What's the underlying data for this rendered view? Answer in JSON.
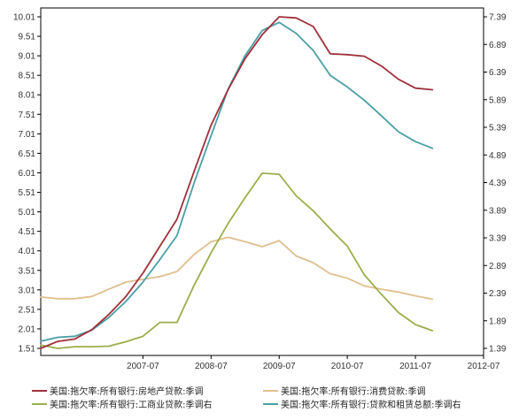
{
  "chart_data": {
    "type": "line",
    "title": "",
    "xlabel": "",
    "ylabel": "",
    "ylim_left": [
      1.51,
      10.01
    ],
    "ylim_right": [
      1.39,
      7.39
    ],
    "left_ticks": [
      "10.01",
      "9.51",
      "9.01",
      "8.51",
      "8.01",
      "7.51",
      "7.01",
      "6.51",
      "6.01",
      "5.51",
      "5.01",
      "4.51",
      "4.01",
      "3.51",
      "3.01",
      "2.51",
      "2.01",
      "1.51"
    ],
    "right_ticks": [
      "7.39",
      "6.89",
      "6.39",
      "5.89",
      "5.39",
      "4.89",
      "4.39",
      "3.89",
      "3.39",
      "2.89",
      "2.39",
      "1.89",
      "1.39"
    ],
    "x_ticks": [
      "2007-07",
      "2008-07",
      "2009-07",
      "2010-07",
      "2011-07",
      "2012-07"
    ],
    "x_range": [
      "2006-01",
      "2012-07"
    ],
    "grid": false,
    "legend_position": "bottom",
    "series": [
      {
        "name": "美国:拖欠率:所有银行:房地产贷款:季调",
        "axis": "left",
        "color": "#a0303a",
        "points": [
          [
            "2006-01",
            1.51
          ],
          [
            "2006-04",
            1.69
          ],
          [
            "2006-07",
            1.75
          ],
          [
            "2006-10",
            1.99
          ],
          [
            "2007-01",
            2.38
          ],
          [
            "2007-04",
            2.84
          ],
          [
            "2007-07",
            3.44
          ],
          [
            "2007-10",
            4.13
          ],
          [
            "2008-01",
            4.82
          ],
          [
            "2008-04",
            6.04
          ],
          [
            "2008-07",
            7.23
          ],
          [
            "2008-10",
            8.14
          ],
          [
            "2009-01",
            8.94
          ],
          [
            "2009-04",
            9.55
          ],
          [
            "2009-07",
            10.01
          ],
          [
            "2009-10",
            9.98
          ],
          [
            "2010-01",
            9.76
          ],
          [
            "2010-04",
            9.06
          ],
          [
            "2010-07",
            9.04
          ],
          [
            "2010-10",
            9.0
          ],
          [
            "2011-01",
            8.75
          ],
          [
            "2011-04",
            8.41
          ],
          [
            "2011-07",
            8.18
          ],
          [
            "2011-10",
            8.14
          ]
        ]
      },
      {
        "name": "美国:拖欠率:所有银行:消费贷款:季调",
        "axis": "right",
        "color": "#e0bf8f",
        "points": [
          [
            "2006-01",
            2.32
          ],
          [
            "2006-04",
            2.29
          ],
          [
            "2006-07",
            2.29
          ],
          [
            "2006-10",
            2.33
          ],
          [
            "2007-01",
            2.46
          ],
          [
            "2007-04",
            2.59
          ],
          [
            "2007-07",
            2.64
          ],
          [
            "2007-10",
            2.69
          ],
          [
            "2008-01",
            2.78
          ],
          [
            "2008-04",
            3.09
          ],
          [
            "2008-07",
            3.32
          ],
          [
            "2008-10",
            3.4
          ],
          [
            "2009-01",
            3.32
          ],
          [
            "2009-04",
            3.23
          ],
          [
            "2009-07",
            3.34
          ],
          [
            "2009-10",
            3.06
          ],
          [
            "2010-01",
            2.94
          ],
          [
            "2010-04",
            2.74
          ],
          [
            "2010-07",
            2.66
          ],
          [
            "2010-10",
            2.52
          ],
          [
            "2011-01",
            2.46
          ],
          [
            "2011-04",
            2.41
          ],
          [
            "2011-07",
            2.34
          ],
          [
            "2011-10",
            2.28
          ]
        ]
      },
      {
        "name": "美国:拖欠率:所有银行:工商业贷款:季调右",
        "axis": "right",
        "color": "#9aae4c",
        "points": [
          [
            "2006-01",
            1.45
          ],
          [
            "2006-04",
            1.39
          ],
          [
            "2006-07",
            1.42
          ],
          [
            "2006-10",
            1.42
          ],
          [
            "2007-01",
            1.43
          ],
          [
            "2007-04",
            1.51
          ],
          [
            "2007-07",
            1.61
          ],
          [
            "2007-10",
            1.86
          ],
          [
            "2008-01",
            1.86
          ],
          [
            "2008-04",
            2.53
          ],
          [
            "2008-07",
            3.12
          ],
          [
            "2008-10",
            3.65
          ],
          [
            "2009-01",
            4.12
          ],
          [
            "2009-04",
            4.56
          ],
          [
            "2009-07",
            4.54
          ],
          [
            "2009-10",
            4.15
          ],
          [
            "2010-01",
            3.88
          ],
          [
            "2010-04",
            3.55
          ],
          [
            "2010-07",
            3.24
          ],
          [
            "2010-10",
            2.72
          ],
          [
            "2011-01",
            2.37
          ],
          [
            "2011-04",
            2.04
          ],
          [
            "2011-07",
            1.82
          ],
          [
            "2011-10",
            1.71
          ]
        ]
      },
      {
        "name": "美国:拖欠率:所有银行:贷款和租赁总额:季调右",
        "axis": "right",
        "color": "#4a9fa5",
        "points": [
          [
            "2006-01",
            1.52
          ],
          [
            "2006-04",
            1.59
          ],
          [
            "2006-07",
            1.61
          ],
          [
            "2006-10",
            1.72
          ],
          [
            "2007-01",
            1.95
          ],
          [
            "2007-04",
            2.24
          ],
          [
            "2007-07",
            2.59
          ],
          [
            "2007-10",
            3.0
          ],
          [
            "2008-01",
            3.43
          ],
          [
            "2008-04",
            4.38
          ],
          [
            "2008-07",
            5.24
          ],
          [
            "2008-10",
            6.08
          ],
          [
            "2009-01",
            6.69
          ],
          [
            "2009-04",
            7.14
          ],
          [
            "2009-07",
            7.29
          ],
          [
            "2009-10",
            7.09
          ],
          [
            "2010-01",
            6.78
          ],
          [
            "2010-04",
            6.33
          ],
          [
            "2010-07",
            6.12
          ],
          [
            "2010-10",
            5.88
          ],
          [
            "2011-01",
            5.6
          ],
          [
            "2011-04",
            5.31
          ],
          [
            "2011-07",
            5.13
          ],
          [
            "2011-10",
            5.01
          ]
        ]
      }
    ]
  }
}
